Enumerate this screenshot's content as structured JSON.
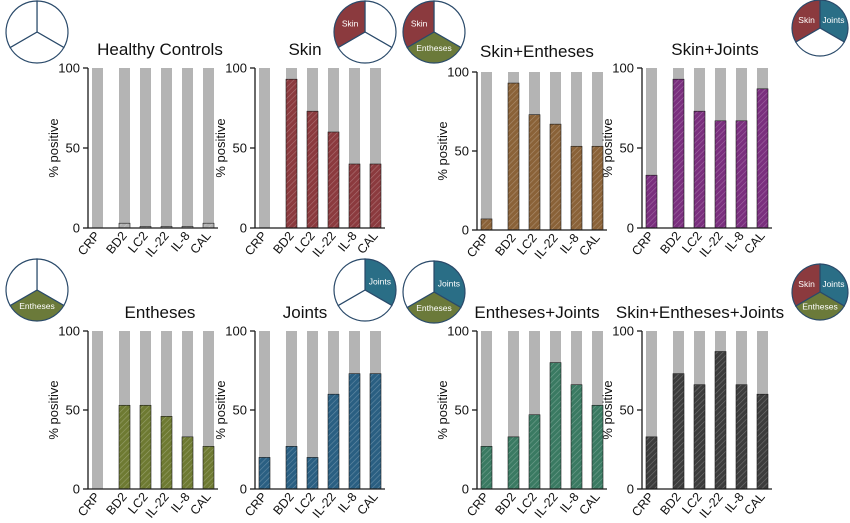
{
  "colors": {
    "background_bar": "#b4b4b4",
    "skin": "#8b3a3e",
    "entheses": "#6b7a3a",
    "joints": "#2a6e86",
    "axis": "#1a1a1a"
  },
  "pie_labels": {
    "skin": "Skin",
    "entheses": "Entheses",
    "joints": "Joints"
  },
  "shared": {
    "ylabel": "% positive",
    "yticks": [
      "0",
      "50",
      "100"
    ],
    "categories": [
      "CRP",
      "BD2",
      "LC2",
      "IL-22",
      "IL-8",
      "CAL"
    ]
  },
  "chart_data": [
    {
      "type": "bar",
      "title": "Healthy Controls",
      "ylabel": "% positive",
      "categories": [
        "CRP",
        "BD2",
        "LC2",
        "IL-22",
        "IL-8",
        "CAL"
      ],
      "ylim": [
        0,
        100
      ],
      "series": [
        {
          "values": [
            100,
            100,
            100,
            100,
            100,
            100
          ]
        },
        {
          "values": [
            0,
            3,
            1,
            1,
            1,
            3
          ]
        }
      ],
      "bar_color": "#b0b0b0",
      "pie": {
        "skin": false,
        "entheses": false,
        "joints": false
      }
    },
    {
      "type": "bar",
      "title": "Skin",
      "ylabel": "% positive",
      "categories": [
        "CRP",
        "BD2",
        "LC2",
        "IL-22",
        "IL-8",
        "CAL"
      ],
      "ylim": [
        0,
        100
      ],
      "series": [
        {
          "values": [
            100,
            100,
            100,
            100,
            100,
            100
          ]
        },
        {
          "values": [
            0,
            93,
            73,
            60,
            40,
            40
          ]
        }
      ],
      "bar_color": "#8b3a3e",
      "pie": {
        "skin": true,
        "entheses": false,
        "joints": false
      }
    },
    {
      "type": "bar",
      "title": "Skin+Entheses",
      "ylabel": "% positive",
      "categories": [
        "CRP",
        "BD2",
        "LC2",
        "IL-22",
        "IL-8",
        "CAL"
      ],
      "ylim": [
        0,
        100
      ],
      "series": [
        {
          "values": [
            100,
            100,
            100,
            100,
            100,
            100
          ]
        },
        {
          "values": [
            7,
            93,
            73,
            67,
            53,
            53
          ]
        }
      ],
      "bar_color": "#8a6238",
      "pie": {
        "skin": true,
        "entheses": true,
        "joints": false
      }
    },
    {
      "type": "bar",
      "title": "Skin+Joints",
      "ylabel": "% positive",
      "categories": [
        "CRP",
        "BD2",
        "LC2",
        "IL-22",
        "IL-8",
        "CAL"
      ],
      "ylim": [
        0,
        100
      ],
      "series": [
        {
          "values": [
            100,
            100,
            100,
            100,
            100,
            100
          ]
        },
        {
          "values": [
            33,
            93,
            73,
            67,
            67,
            87
          ]
        }
      ],
      "bar_color": "#7a2f7e",
      "pie": {
        "skin": true,
        "entheses": false,
        "joints": true
      }
    },
    {
      "type": "bar",
      "title": "Entheses",
      "ylabel": "% positive",
      "categories": [
        "CRP",
        "BD2",
        "LC2",
        "IL-22",
        "IL-8",
        "CAL"
      ],
      "ylim": [
        0,
        100
      ],
      "series": [
        {
          "values": [
            100,
            100,
            100,
            100,
            100,
            100
          ]
        },
        {
          "values": [
            0,
            53,
            53,
            46,
            33,
            27
          ]
        }
      ],
      "bar_color": "#6e7a32",
      "pie": {
        "skin": false,
        "entheses": true,
        "joints": false
      }
    },
    {
      "type": "bar",
      "title": "Joints",
      "ylabel": "% positive",
      "categories": [
        "CRP",
        "BD2",
        "LC2",
        "IL-22",
        "IL-8",
        "CAL"
      ],
      "ylim": [
        0,
        100
      ],
      "series": [
        {
          "values": [
            100,
            100,
            100,
            100,
            100,
            100
          ]
        },
        {
          "values": [
            20,
            27,
            20,
            60,
            73,
            73
          ]
        }
      ],
      "bar_color": "#2a5f82",
      "pie": {
        "skin": false,
        "entheses": false,
        "joints": true
      }
    },
    {
      "type": "bar",
      "title": "Entheses+Joints",
      "ylabel": "% positive",
      "categories": [
        "CRP",
        "BD2",
        "LC2",
        "IL-22",
        "IL-8",
        "CAL"
      ],
      "ylim": [
        0,
        100
      ],
      "series": [
        {
          "values": [
            100,
            100,
            100,
            100,
            100,
            100
          ]
        },
        {
          "values": [
            27,
            33,
            47,
            80,
            66,
            53
          ]
        }
      ],
      "bar_color": "#3a7a62",
      "pie": {
        "skin": false,
        "entheses": true,
        "joints": true
      }
    },
    {
      "type": "bar",
      "title": "Skin+Entheses+Joints",
      "ylabel": "% positive",
      "categories": [
        "CRP",
        "BD2",
        "LC2",
        "IL-22",
        "IL-8",
        "CAL"
      ],
      "ylim": [
        0,
        100
      ],
      "series": [
        {
          "values": [
            100,
            100,
            100,
            100,
            100,
            100
          ]
        },
        {
          "values": [
            33,
            73,
            66,
            87,
            66,
            60
          ]
        }
      ],
      "bar_color": "#3c3c3c",
      "pie": {
        "skin": true,
        "entheses": true,
        "joints": true
      }
    }
  ]
}
